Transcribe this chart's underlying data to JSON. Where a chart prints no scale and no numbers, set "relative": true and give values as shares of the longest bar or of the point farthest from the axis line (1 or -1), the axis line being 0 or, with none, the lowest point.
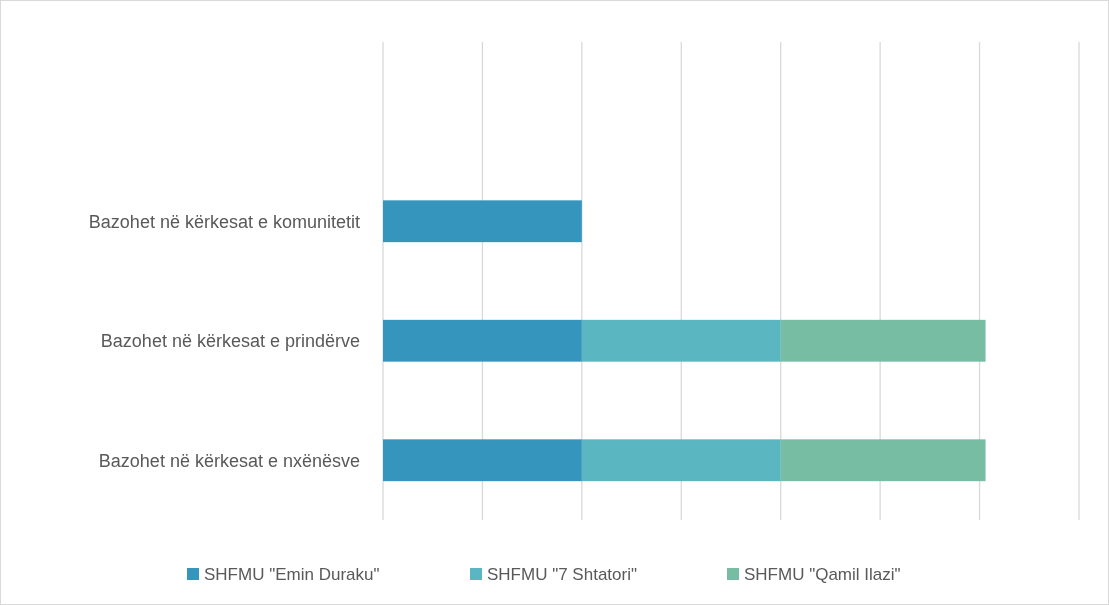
{
  "chart_data": {
    "type": "bar",
    "orientation": "horizontal",
    "stacked": true,
    "relative": true,
    "grid": "x",
    "legend": "bottom",
    "categories": [
      null,
      "Bazohet në kërkesat e komunitetit",
      "Bazohet në kërkesat e prindërve",
      "Bazohet në kërkesat e nxënësve"
    ],
    "series": [
      {
        "name": "SHFMU \"Emin Duraku\"",
        "color": "#3595bc",
        "values": [
          null,
          0.33,
          0.33,
          0.33
        ]
      },
      {
        "name": "SHFMU \"7 Shtatori\"",
        "color": "#5ab7c1",
        "values": [
          null,
          null,
          0.33,
          0.33
        ]
      },
      {
        "name": "SHFMU \"Qamil Ilazi\"",
        "color": "#76bda3",
        "values": [
          null,
          null,
          0.34,
          0.34
        ]
      }
    ]
  }
}
